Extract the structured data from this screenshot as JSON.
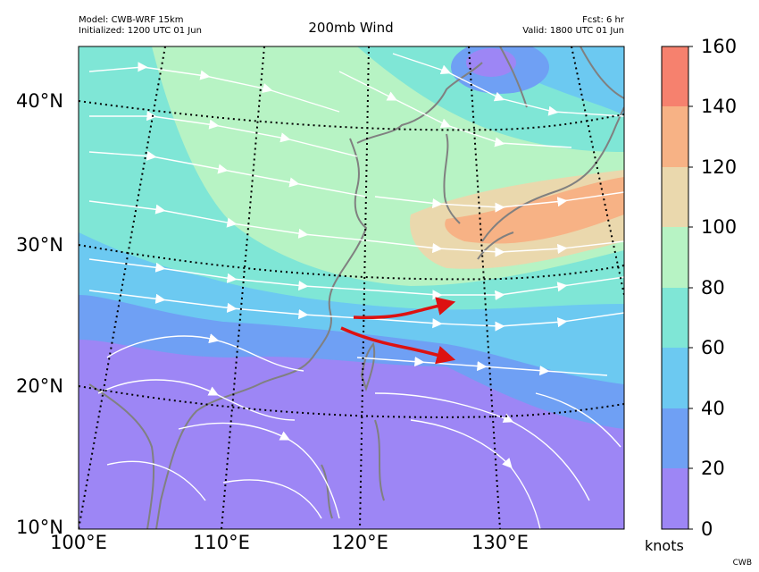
{
  "header": {
    "model": "Model: CWB-WRF 15km",
    "initialized": "Initialized: 1200 UTC 01 Jun",
    "title": "200mb Wind",
    "forecast": "Fcst: 6 hr",
    "valid": "Valid: 1800 UTC 01 Jun"
  },
  "map": {
    "lat_labels": [
      "40°N",
      "30°N",
      "20°N",
      "10°N"
    ],
    "lon_labels": [
      "100°E",
      "110°E",
      "120°E",
      "130°E"
    ],
    "annotation": "two red arrows pointing east over the East China Sea marking the jet",
    "colors": {
      "jet_arrow": "#dd1111",
      "coastline": "#808080",
      "streamline": "#ffffff"
    }
  },
  "colorbar": {
    "ticks": [
      "160",
      "140",
      "120",
      "100",
      "80",
      "60",
      "40",
      "20",
      "0"
    ],
    "units": "knots",
    "bins": [
      {
        "range": "0-20",
        "color": "#9d86f5"
      },
      {
        "range": "20-40",
        "color": "#6fa0f4"
      },
      {
        "range": "40-60",
        "color": "#6cc9f1"
      },
      {
        "range": "60-80",
        "color": "#7fe6d6"
      },
      {
        "range": "80-100",
        "color": "#b7f3c4"
      },
      {
        "range": "100-120",
        "color": "#ead8ad"
      },
      {
        "range": "120-140",
        "color": "#f7b285"
      },
      {
        "range": "140-160",
        "color": "#f6816e"
      }
    ]
  },
  "credit": "CWB"
}
